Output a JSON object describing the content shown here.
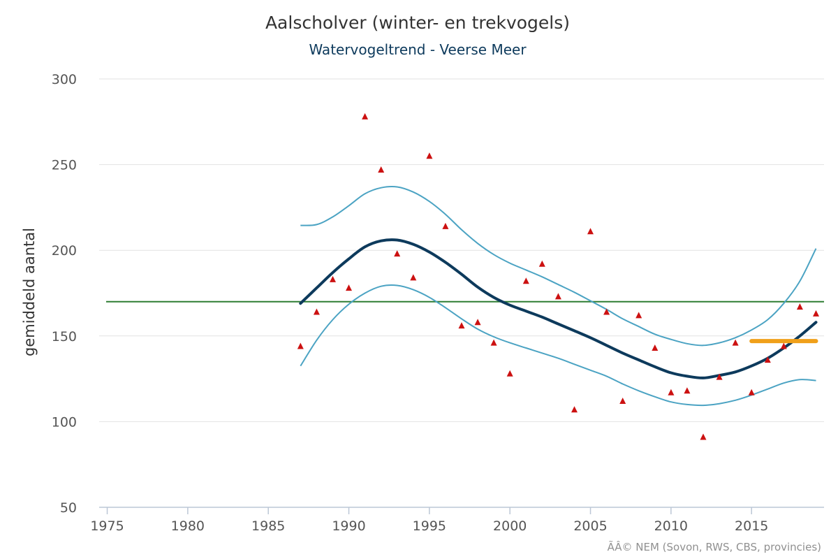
{
  "chart_data": {
    "type": "line",
    "title": "Aalscholver (winter- en trekvogels)",
    "subtitle": "Watervogeltrend - Veerse Meer",
    "ylabel": "gemiddeld aantal",
    "xlabel": "",
    "credits": "ÃÂ© NEM (Sovon, RWS, CBS, provincies)",
    "xlim": [
      1974.5,
      2019.5
    ],
    "ylim": [
      50,
      300
    ],
    "x_ticks": [
      1975,
      1980,
      1985,
      1990,
      1995,
      2000,
      2005,
      2010,
      2015
    ],
    "y_ticks": [
      50,
      100,
      150,
      200,
      250,
      300
    ],
    "grid": true,
    "legend": "none",
    "reference_line": {
      "value": 170,
      "color": "#2e7d32"
    },
    "period_mean": {
      "x": [
        2015,
        2019
      ],
      "value": 147,
      "color": "#f0a01a"
    },
    "x": [
      1987,
      1988,
      1989,
      1990,
      1991,
      1992,
      1993,
      1994,
      1995,
      1996,
      1997,
      1998,
      1999,
      2000,
      2001,
      2002,
      2003,
      2004,
      2005,
      2006,
      2007,
      2008,
      2009,
      2010,
      2011,
      2012,
      2013,
      2014,
      2015,
      2016,
      2017,
      2018,
      2019
    ],
    "series": [
      {
        "role": "trend",
        "color": "#0d3a5c",
        "values": [
          169,
          178,
          187,
          195,
          202,
          205.5,
          206,
          203.5,
          199,
          193,
          186,
          178.5,
          172.5,
          168,
          164.5,
          161,
          157,
          153,
          149,
          144.5,
          140,
          136,
          132,
          128.5,
          126.5,
          125.5,
          127,
          129,
          132.5,
          137,
          143,
          150,
          158
        ]
      },
      {
        "role": "upper",
        "color": "#4ba3c3",
        "values": [
          214.5,
          215,
          219.5,
          226,
          233,
          236.5,
          237,
          234,
          228.5,
          221,
          212,
          204,
          197.5,
          192.5,
          188.5,
          184.5,
          180,
          175.5,
          170.5,
          165.5,
          160,
          155.5,
          151,
          148,
          145.5,
          144.5,
          146,
          149,
          153.5,
          159.5,
          169,
          182,
          201
        ]
      },
      {
        "role": "lower",
        "color": "#4ba3c3",
        "values": [
          132.5,
          147.5,
          159.5,
          168.5,
          175,
          179,
          179.5,
          177,
          172.5,
          166.5,
          160,
          154,
          149.5,
          146,
          143,
          140,
          137,
          133.5,
          130,
          126.5,
          122,
          118,
          114.5,
          111.5,
          110,
          109.5,
          110.5,
          112.5,
          115.5,
          119,
          122.5,
          124.5,
          124
        ]
      },
      {
        "role": "counts",
        "type": "scatter",
        "color": "#cc1111",
        "values": [
          144,
          164,
          183,
          178,
          278,
          247,
          198,
          184,
          255,
          214,
          156,
          158,
          146,
          128,
          182,
          192,
          173,
          107,
          211,
          164,
          112,
          162,
          143,
          117,
          118,
          91,
          126,
          146,
          117,
          136,
          144,
          167,
          163
        ]
      }
    ]
  }
}
